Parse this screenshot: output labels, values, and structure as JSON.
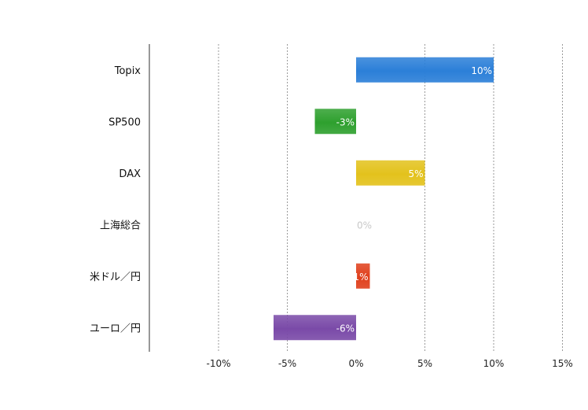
{
  "chart_data": {
    "type": "bar",
    "orientation": "horizontal",
    "categories": [
      "Topix",
      "SP500",
      "DAX",
      "上海総合",
      "米ドル／円",
      "ユーロ／円"
    ],
    "values": [
      10,
      -3,
      5,
      0,
      1,
      -6
    ],
    "data_labels": [
      "10%",
      "-3%",
      "5%",
      "0%",
      "1%",
      "-6%"
    ],
    "bar_colors": [
      "#2b7fd8",
      "#2ea02e",
      "#e3c21c",
      "#c8c8c8",
      "#e0401c",
      "#7a4aa8"
    ],
    "xlim": [
      -15,
      15
    ],
    "x_ticks": [
      -10,
      -5,
      0,
      5,
      10,
      15
    ],
    "x_tick_labels": [
      "-10%",
      "-5%",
      "0%",
      "5%",
      "10%",
      "15%"
    ],
    "grid": "vertical-dotted",
    "legend": "none",
    "title": "",
    "xlabel": "",
    "ylabel": ""
  }
}
